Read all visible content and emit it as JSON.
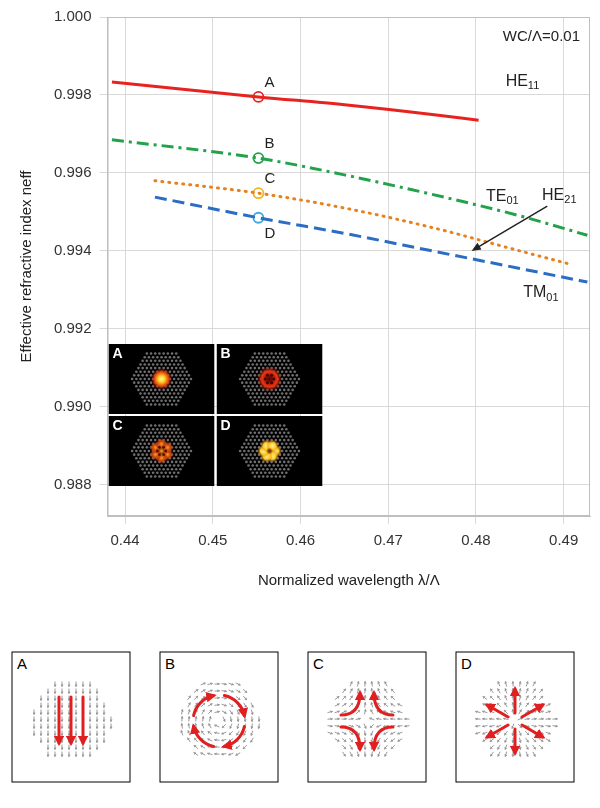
{
  "chart_data": {
    "type": "line",
    "x_label": "Normalized wavelength λ/Λ",
    "y_label": "Effective refractive index neff",
    "xlim": [
      0.438,
      0.493
    ],
    "xticks": [
      0.44,
      0.45,
      0.46,
      0.47,
      0.48,
      0.49
    ],
    "ylim": [
      0.9872,
      1.0
    ],
    "yticks": [
      0.988,
      {
        "value": 0.99,
        "label": "0.990"
      },
      0.992,
      0.994,
      0.996,
      0.998,
      {
        "value": 1.0,
        "label": "1.000"
      }
    ],
    "grid": true,
    "series": [
      {
        "name": "HE11",
        "color": "#e8231f",
        "line_style": "solid",
        "x": [
          0.4385,
          0.4552,
          0.465,
          0.475,
          0.4803
        ],
        "values": [
          0.99833,
          0.99795,
          0.99775,
          0.9975,
          0.99735
        ]
      },
      {
        "name": "TE01",
        "color": "#22a24a",
        "line_style": "dashdot",
        "x": [
          0.4385,
          0.4552,
          0.465,
          0.475,
          0.485,
          0.4927
        ],
        "values": [
          0.99685,
          0.99638,
          0.99595,
          0.99545,
          0.9949,
          0.9944
        ]
      },
      {
        "name": "HE21",
        "color": "#e8801e",
        "line_style": "dotted",
        "x": [
          0.4434,
          0.4552,
          0.465,
          0.475,
          0.485,
          0.4909
        ],
        "values": [
          0.9958,
          0.99548,
          0.9951,
          0.9946,
          0.994,
          0.99365
        ]
      },
      {
        "name": "TM01",
        "color": "#2b6cc4",
        "line_style": "dashed",
        "x": [
          0.4434,
          0.4552,
          0.465,
          0.475,
          0.485,
          0.4927
        ],
        "values": [
          0.99538,
          0.99485,
          0.99445,
          0.994,
          0.99355,
          0.9932
        ]
      }
    ],
    "points": [
      {
        "label": "A",
        "x": 0.4552,
        "y": 0.99795,
        "color": "#e8231f"
      },
      {
        "label": "B",
        "x": 0.4552,
        "y": 0.99638,
        "color": "#22a24a"
      },
      {
        "label": "C",
        "x": 0.4552,
        "y": 0.99548,
        "color": "#f3b323"
      },
      {
        "label": "D",
        "x": 0.4552,
        "y": 0.99485,
        "color": "#3ca9e0"
      }
    ],
    "annotations": [
      {
        "text": "WC/Λ=0.01"
      },
      {
        "text": "HE11",
        "x": 0.4853,
        "y": 0.99835
      },
      {
        "text": "TE01",
        "x": 0.483,
        "y": 0.9954
      },
      {
        "text": "HE21",
        "x": 0.4895,
        "y": 0.99543,
        "arrow_to": [
          0.4795,
          0.994
        ]
      },
      {
        "text": "TM01",
        "x": 0.4874,
        "y": 0.99293
      }
    ]
  },
  "insets": {
    "labels": [
      "A",
      "B",
      "C",
      "D"
    ]
  },
  "field_panels": {
    "labels": [
      "A",
      "B",
      "C",
      "D"
    ]
  }
}
